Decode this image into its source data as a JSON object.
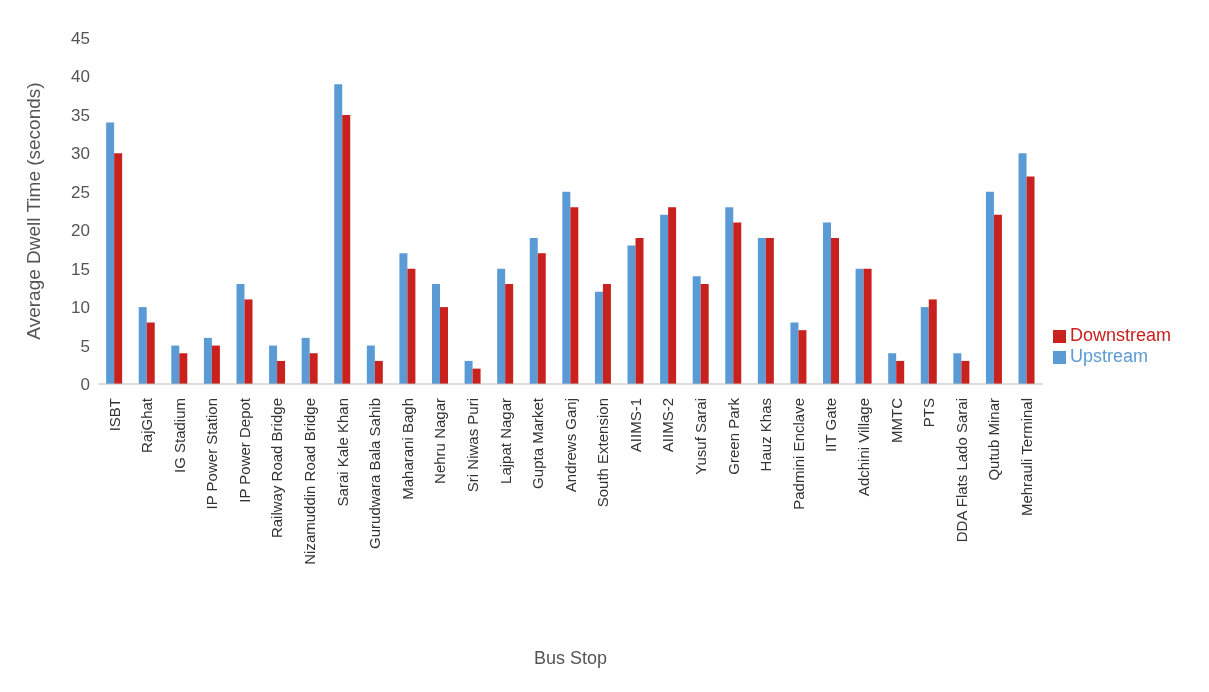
{
  "chart_data": {
    "type": "bar",
    "xlabel": "Bus Stop",
    "ylabel": "Average Dwell Time (seconds)",
    "categories": [
      "ISBT",
      "RajGhat",
      "IG Stadium",
      "IP Power Station",
      "IP Power Depot",
      "Railway Road Bridge",
      "Nizamuddin Road Bridge",
      "Sarai Kale Khan",
      "Gurudwara Bala Sahib",
      "Maharani Bagh",
      "Nehru Nagar",
      "Sri Niwas Puri",
      "Lajpat Nagar",
      "Gupta Market",
      "Andrews Ganj",
      "South Extension",
      "AIIMS-1",
      "AIIMS-2",
      "Yusuf Sarai",
      "Green Park",
      "Hauz Khas",
      "Padmini Enclave",
      "IIT Gate",
      "Adchini Village",
      "MMTC",
      "PTS",
      "DDA Flats Lado Sarai",
      "Qutub Minar",
      "Mehrauli Terminal"
    ],
    "series": [
      {
        "name": "Upstream",
        "color": "#5b9bd5",
        "values": [
          34,
          10,
          5,
          6,
          13,
          5,
          6,
          39,
          5,
          17,
          13,
          3,
          15,
          19,
          25,
          12,
          18,
          22,
          14,
          23,
          19,
          8,
          21,
          15,
          4,
          10,
          4,
          25,
          30
        ]
      },
      {
        "name": "Downstream",
        "color": "#c9211e",
        "values": [
          30,
          8,
          4,
          5,
          11,
          3,
          4,
          35,
          3,
          15,
          10,
          2,
          13,
          17,
          23,
          13,
          19,
          23,
          13,
          21,
          19,
          7,
          19,
          15,
          3,
          11,
          3,
          22,
          27
        ]
      }
    ],
    "ylim": [
      0,
      45
    ],
    "yticks": [
      0,
      5,
      10,
      15,
      20,
      25,
      30,
      35,
      40,
      45
    ],
    "grid": false,
    "legend": "right"
  }
}
